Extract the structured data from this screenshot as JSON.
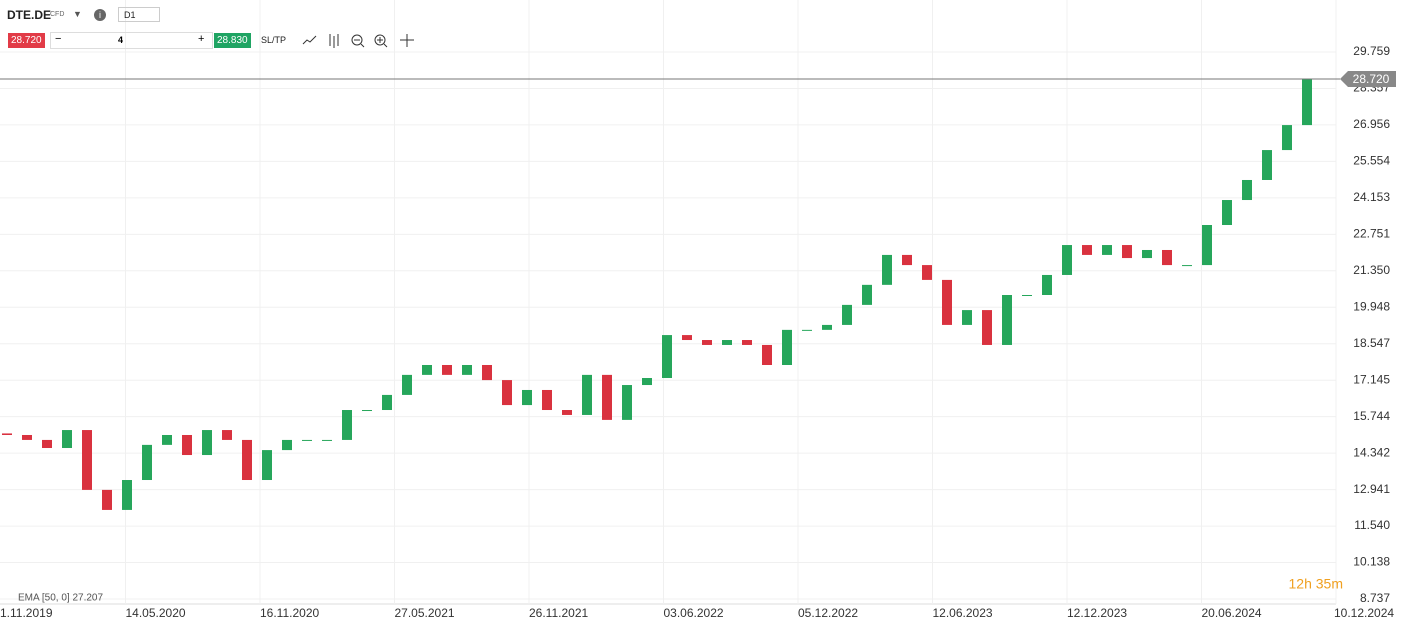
{
  "toolbar": {
    "symbol": "DTE.DE",
    "instrument": "CFD",
    "timeframe": "D1",
    "sell": "28.720",
    "volume": "4",
    "buy": "28.830",
    "sltp": "SL/TP"
  },
  "chart_data": {
    "type": "candlestick",
    "up_color": "#26a65b",
    "down_color": "#d9323f",
    "xtick_labels": [
      "1.11.2019",
      "14.05.2020",
      "16.11.2020",
      "27.05.2021",
      "26.11.2021",
      "03.06.2022",
      "05.12.2022",
      "12.06.2023",
      "12.12.2023",
      "20.06.2024",
      "10.12.2024"
    ],
    "open": [
      15.1,
      15.04,
      14.85,
      14.54,
      15.23,
      12.93,
      12.16,
      13.31,
      14.66,
      15.04,
      14.27,
      15.23,
      14.85,
      13.31,
      14.46,
      14.85,
      14.85,
      14.85,
      16.0,
      16.0,
      16.58,
      17.35,
      17.73,
      17.35,
      17.73,
      17.15,
      16.19,
      16.77,
      16.0,
      15.81,
      17.35,
      15.62,
      16.96,
      17.23,
      18.88,
      18.69,
      18.5,
      18.69,
      18.5,
      17.73,
      19.08,
      19.08,
      19.27,
      20.04,
      20.81,
      21.96,
      21.57,
      21.0,
      19.27,
      19.84,
      18.5,
      20.42,
      20.42,
      21.19,
      22.34,
      21.96,
      22.34,
      21.84,
      22.15,
      21.57,
      21.57,
      23.11,
      24.07,
      24.84,
      25.99,
      26.95
    ],
    "close": [
      15.04,
      14.85,
      14.54,
      15.23,
      12.93,
      12.16,
      13.31,
      14.66,
      15.04,
      14.27,
      15.23,
      14.85,
      13.31,
      14.46,
      14.85,
      14.85,
      14.85,
      16.0,
      16.0,
      16.58,
      17.35,
      17.73,
      17.35,
      17.73,
      17.15,
      16.19,
      16.77,
      16.0,
      15.81,
      17.35,
      15.62,
      16.96,
      17.23,
      18.88,
      18.69,
      18.5,
      18.69,
      18.5,
      17.73,
      19.08,
      19.08,
      19.27,
      20.04,
      20.81,
      21.96,
      21.57,
      21.0,
      19.27,
      19.84,
      18.5,
      20.42,
      20.42,
      21.19,
      22.34,
      21.96,
      22.34,
      21.84,
      22.15,
      21.57,
      21.57,
      23.11,
      24.07,
      24.84,
      25.99,
      26.95,
      28.72
    ],
    "ylim": [
      8.545,
      31.757
    ],
    "yticks": [
      8.737,
      10.138,
      {
        "value": 11.54,
        "label": "11.540"
      },
      12.941,
      14.342,
      15.744,
      17.145,
      18.547,
      19.948,
      {
        "value": 21.35,
        "label": "21.350"
      },
      22.751,
      24.153,
      25.554,
      26.956,
      28.357,
      29.759
    ],
    "current_price": {
      "value": 28.72,
      "label": "28.720"
    },
    "indicator": "EMA [50, 0] 27.207",
    "countdown": "12h 35m"
  }
}
